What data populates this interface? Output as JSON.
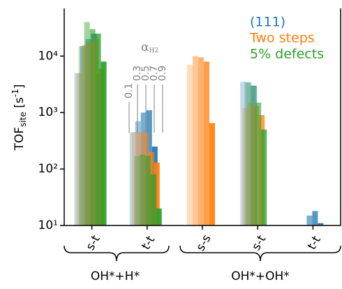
{
  "chart_data": {
    "type": "bar",
    "ylabel": {
      "main": "TOF",
      "sub": "site",
      "unit": " [s",
      "sup": "-1",
      "end": "]"
    },
    "categories": [
      "s-t",
      "t-t",
      "s-s",
      "s-t",
      "t-t"
    ],
    "groups": [
      {
        "label": "OH*+H*"
      },
      {
        "label": "OH*+OH*"
      }
    ],
    "log_scale": true,
    "ylim": [
      10,
      70000
    ],
    "yticks": [
      {
        "value": 10,
        "label": "10¹"
      },
      {
        "value": 100,
        "label": "10²"
      },
      {
        "value": 1000,
        "label": "10³"
      },
      {
        "value": 10000,
        "label": "10⁴"
      }
    ],
    "alpha_symbol": "α",
    "alpha_sub": "H2",
    "alpha_values": [
      0.1,
      0.3,
      0.5,
      0.7,
      0.9
    ],
    "series": [
      {
        "name": "(111)",
        "color": "#1f77b4",
        "values": [
          [
            5000,
            15000,
            20000,
            25000,
            5000
          ],
          [
            450,
            700,
            1000,
            1100,
            250
          ],
          [
            null,
            null,
            null,
            null,
            null
          ],
          [
            3500,
            3400,
            3000,
            null,
            null
          ],
          [
            null,
            null,
            15,
            18,
            11
          ]
        ]
      },
      {
        "name": "Two steps",
        "color": "#ff7f0e",
        "values": [
          [
            5000,
            16000,
            18000,
            20000,
            6000
          ],
          [
            450,
            450,
            450,
            200,
            130
          ],
          [
            7000,
            10000,
            9500,
            8000,
            650
          ],
          [
            1200,
            1500,
            1300,
            900,
            null
          ],
          [
            null,
            null,
            null,
            null,
            null
          ]
        ]
      },
      {
        "name": "5% defects",
        "color": "#2ca02c",
        "values": [
          [
            15000,
            40000,
            30000,
            25000,
            8000
          ],
          [
            170,
            180,
            170,
            80,
            20
          ],
          [
            null,
            null,
            null,
            null,
            null
          ],
          [
            3500,
            3000,
            1500,
            500,
            null
          ],
          [
            null,
            null,
            null,
            null,
            null
          ]
        ]
      }
    ],
    "legend_position": "upper right"
  }
}
